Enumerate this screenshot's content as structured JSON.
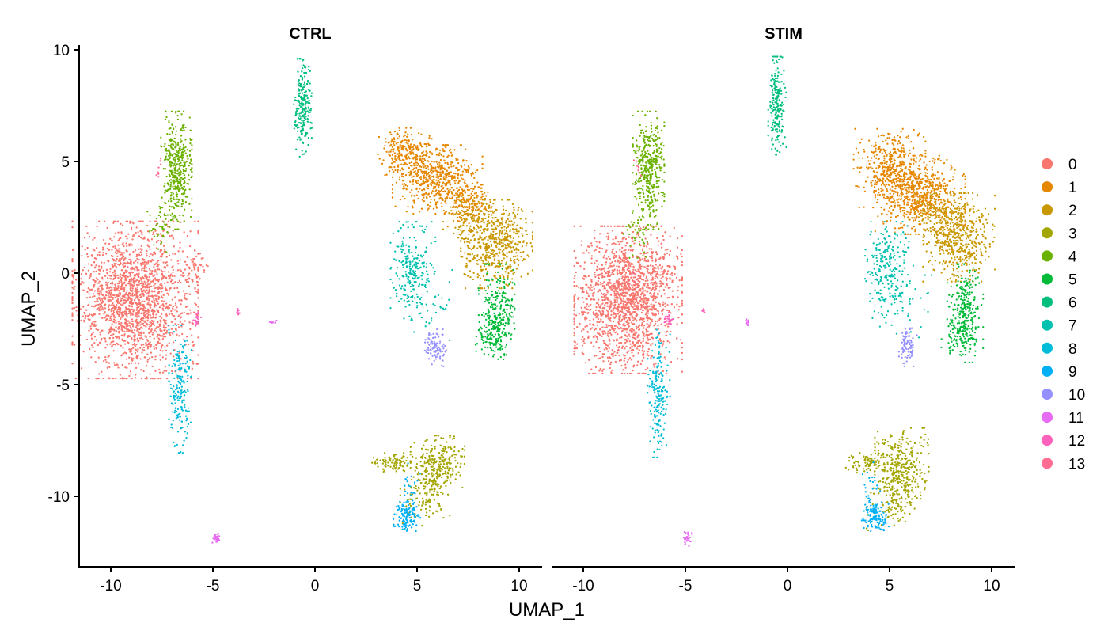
{
  "chart_data": {
    "type": "scatter",
    "title": "",
    "xlabel": "UMAP_1",
    "ylabel": "UMAP_2",
    "xlim": [
      -11.5,
      11.5
    ],
    "ylim": [
      -13,
      10.2
    ],
    "xticks": [
      -10,
      -5,
      0,
      5,
      10
    ],
    "yticks": [
      10,
      5,
      0,
      -5,
      -10
    ],
    "x_tick_labels": [
      "-10",
      "-5",
      "0",
      "5",
      "10"
    ],
    "y_tick_labels": [
      "10",
      "5",
      "0",
      "-5",
      "-10"
    ],
    "legend_position": "right",
    "facets": [
      {
        "name": "CTRL",
        "label": "CTRL"
      },
      {
        "name": "STIM",
        "label": "STIM"
      }
    ],
    "clusters": [
      {
        "name": "0",
        "label": "0",
        "color": "#F8766D",
        "CTRL": [
          [
            -8.8,
            -1.2,
            1.4,
            1.6,
            1900
          ],
          [
            -5.9,
            0.3,
            0.3,
            0.4,
            40
          ]
        ],
        "STIM": [
          [
            -7.8,
            -1.2,
            1.2,
            1.5,
            1700
          ],
          [
            -6.2,
            0.3,
            0.4,
            0.5,
            40
          ]
        ]
      },
      {
        "name": "1",
        "label": "1",
        "color": "#E58700",
        "CTRL": [
          [
            4.4,
            5.4,
            0.6,
            0.5,
            250
          ],
          [
            6.0,
            4.2,
            1.0,
            0.7,
            550
          ],
          [
            7.6,
            3.0,
            0.5,
            0.5,
            120
          ]
        ],
        "STIM": [
          [
            5.0,
            4.7,
            0.8,
            0.8,
            400
          ],
          [
            6.5,
            3.5,
            1.0,
            0.8,
            600
          ]
        ]
      },
      {
        "name": "2",
        "label": "2",
        "color": "#C99800",
        "CTRL": [
          [
            8.9,
            1.3,
            0.8,
            0.9,
            550
          ],
          [
            7.6,
            2.5,
            0.6,
            0.5,
            100
          ]
        ],
        "STIM": [
          [
            8.4,
            1.6,
            0.8,
            0.9,
            500
          ],
          [
            7.2,
            2.8,
            0.6,
            0.5,
            100
          ]
        ]
      },
      {
        "name": "3",
        "label": "3",
        "color": "#A3A500",
        "CTRL": [
          [
            6.0,
            -8.6,
            0.6,
            0.6,
            280
          ],
          [
            3.9,
            -8.5,
            0.5,
            0.2,
            90
          ],
          [
            5.5,
            -10.0,
            0.6,
            0.6,
            110
          ]
        ],
        "STIM": [
          [
            5.6,
            -8.7,
            0.6,
            0.8,
            320
          ],
          [
            3.9,
            -8.5,
            0.5,
            0.2,
            90
          ],
          [
            5.2,
            -10.2,
            0.6,
            0.6,
            110
          ]
        ]
      },
      {
        "name": "4",
        "label": "4",
        "color": "#6BB100",
        "CTRL": [
          [
            -6.8,
            4.6,
            0.35,
            1.2,
            430
          ],
          [
            -7.6,
            2.0,
            0.3,
            0.6,
            40
          ]
        ],
        "STIM": [
          [
            -6.8,
            4.6,
            0.35,
            1.2,
            400
          ],
          [
            -7.5,
            2.0,
            0.3,
            0.6,
            40
          ]
        ]
      },
      {
        "name": "5",
        "label": "5",
        "color": "#00BA38",
        "CTRL": [
          [
            8.9,
            -1.8,
            0.4,
            1.0,
            280
          ],
          [
            8.5,
            -3.0,
            0.4,
            0.3,
            60
          ]
        ],
        "STIM": [
          [
            8.7,
            -1.8,
            0.4,
            1.0,
            280
          ],
          [
            8.3,
            -3.0,
            0.4,
            0.3,
            60
          ]
        ]
      },
      {
        "name": "6",
        "label": "6",
        "color": "#00BF7D",
        "CTRL": [
          [
            -0.6,
            7.4,
            0.2,
            1.0,
            220
          ]
        ],
        "STIM": [
          [
            -0.5,
            7.5,
            0.2,
            1.0,
            200
          ]
        ]
      },
      {
        "name": "7",
        "label": "7",
        "color": "#00C0AF",
        "CTRL": [
          [
            4.8,
            0.1,
            0.5,
            1.0,
            230
          ],
          [
            5.6,
            -1.3,
            0.7,
            0.8,
            40
          ]
        ],
        "STIM": [
          [
            4.9,
            0.1,
            0.5,
            1.0,
            230
          ],
          [
            5.8,
            -1.3,
            0.7,
            0.8,
            40
          ]
        ]
      },
      {
        "name": "8",
        "label": "8",
        "color": "#00BCD8",
        "CTRL": [
          [
            -6.6,
            -5.2,
            0.25,
            1.3,
            200
          ]
        ],
        "STIM": [
          [
            -6.3,
            -5.4,
            0.25,
            1.3,
            190
          ]
        ]
      },
      {
        "name": "9",
        "label": "9",
        "color": "#00B0F6",
        "CTRL": [
          [
            4.5,
            -10.9,
            0.3,
            0.3,
            120
          ],
          [
            4.7,
            -9.8,
            0.2,
            0.6,
            30
          ]
        ],
        "STIM": [
          [
            4.3,
            -10.9,
            0.3,
            0.3,
            120
          ],
          [
            4.1,
            -9.8,
            0.2,
            0.6,
            30
          ]
        ]
      },
      {
        "name": "10",
        "label": "10",
        "color": "#9590FF",
        "CTRL": [
          [
            5.9,
            -3.3,
            0.25,
            0.4,
            90
          ]
        ],
        "STIM": [
          [
            5.9,
            -3.3,
            0.2,
            0.4,
            80
          ]
        ]
      },
      {
        "name": "11",
        "label": "11",
        "color": "#E76BF3",
        "CTRL": [
          [
            -4.8,
            -11.9,
            0.1,
            0.15,
            30
          ],
          [
            -2.1,
            -2.2,
            0.1,
            0.05,
            10
          ]
        ],
        "STIM": [
          [
            -4.9,
            -11.9,
            0.1,
            0.15,
            30
          ],
          [
            -2.0,
            -2.2,
            0.1,
            0.1,
            10
          ]
        ]
      },
      {
        "name": "12",
        "label": "12",
        "color": "#FF62BC",
        "CTRL": [
          [
            -5.8,
            -2.1,
            0.1,
            0.15,
            25
          ],
          [
            -3.8,
            -1.8,
            0.05,
            0.1,
            8
          ]
        ],
        "STIM": [
          [
            -5.8,
            -2.1,
            0.1,
            0.15,
            20
          ],
          [
            -4.1,
            -1.7,
            0.05,
            0.1,
            8
          ]
        ]
      },
      {
        "name": "13",
        "label": "13",
        "color": "#FF6C91",
        "CTRL": [
          [
            -7.6,
            4.7,
            0.1,
            0.2,
            8
          ],
          [
            -9.0,
            0.3,
            0.2,
            0.2,
            5
          ]
        ],
        "STIM": [
          [
            -7.3,
            4.7,
            0.1,
            0.2,
            8
          ],
          [
            -7.6,
            -0.3,
            0.2,
            0.2,
            5
          ]
        ]
      }
    ]
  }
}
